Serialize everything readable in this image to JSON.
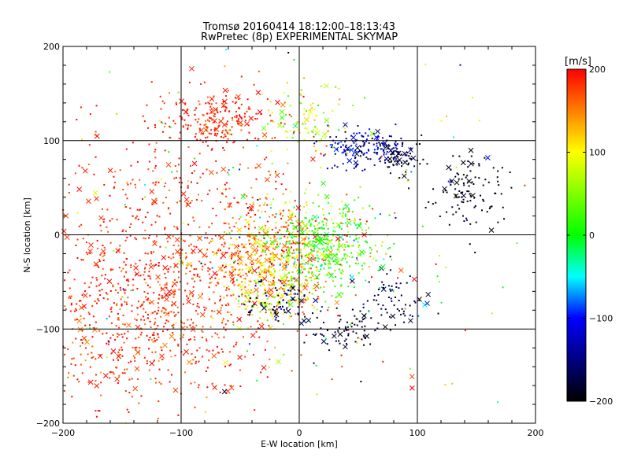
{
  "chart_data": {
    "type": "scatter",
    "title": "Tromsø 20160414 18:12:00–18:13:43",
    "subtitle": "RwPretec (8p) EXPERIMENTAL SKYMAP",
    "xlabel": "E-W location [km]",
    "ylabel": "N-S location [km]",
    "xlim": [
      -200,
      200
    ],
    "ylim": [
      -200,
      200
    ],
    "x_ticks": [
      "−200",
      "−100",
      "0",
      "100",
      "200"
    ],
    "y_ticks": [
      "−200",
      "−100",
      "0",
      "100",
      "200"
    ],
    "grid": true,
    "colorbar": {
      "label": "[m/s]",
      "range": [
        -200,
        200
      ],
      "ticks": [
        "200",
        "100",
        "0",
        "−100",
        "−200"
      ],
      "colors": [
        "#ff0000",
        "#ffff00",
        "#00ff00",
        "#00ffff",
        "#0000ff",
        "#000000"
      ]
    },
    "markers": {
      "small": "dot",
      "large": "x"
    },
    "clusters": [
      {
        "cx": -110,
        "cy": -40,
        "sx": 55,
        "sy": 70,
        "n": 900,
        "v": 185,
        "vs": 15
      },
      {
        "cx": -20,
        "cy": -20,
        "sx": 30,
        "sy": 30,
        "n": 500,
        "v": 140,
        "vs": 40
      },
      {
        "cx": 20,
        "cy": -10,
        "sx": 22,
        "sy": 25,
        "n": 400,
        "v": 20,
        "vs": 35
      },
      {
        "cx": -25,
        "cy": -60,
        "sx": 18,
        "sy": 20,
        "n": 150,
        "v": 90,
        "vs": 40
      },
      {
        "cx": -20,
        "cy": -70,
        "sx": 15,
        "sy": 15,
        "n": 80,
        "v": -170,
        "vs": 25
      },
      {
        "cx": -70,
        "cy": 120,
        "sx": 25,
        "sy": 15,
        "n": 220,
        "v": 185,
        "vs": 15
      },
      {
        "cx": 0,
        "cy": 120,
        "sx": 18,
        "sy": 20,
        "n": 100,
        "v": 90,
        "vs": 50
      },
      {
        "cx": 55,
        "cy": 90,
        "sx": 18,
        "sy": 10,
        "n": 160,
        "v": -130,
        "vs": 30
      },
      {
        "cx": 85,
        "cy": 82,
        "sx": 10,
        "sy": 8,
        "n": 70,
        "v": -185,
        "vs": 15
      },
      {
        "cx": 140,
        "cy": 45,
        "sx": 15,
        "sy": 22,
        "n": 110,
        "v": -195,
        "vs": 10
      },
      {
        "cx": 80,
        "cy": -70,
        "sx": 12,
        "sy": 16,
        "n": 70,
        "v": -175,
        "vs": 20
      },
      {
        "cx": 40,
        "cy": -100,
        "sx": 15,
        "sy": 10,
        "n": 70,
        "v": -185,
        "vs": 15
      },
      {
        "cx": -150,
        "cy": -110,
        "sx": 40,
        "sy": 40,
        "n": 250,
        "v": 180,
        "vs": 20
      },
      {
        "cx": 0,
        "cy": 0,
        "sx": 130,
        "sy": 120,
        "n": 250,
        "v": 60,
        "vs": 120
      }
    ]
  }
}
